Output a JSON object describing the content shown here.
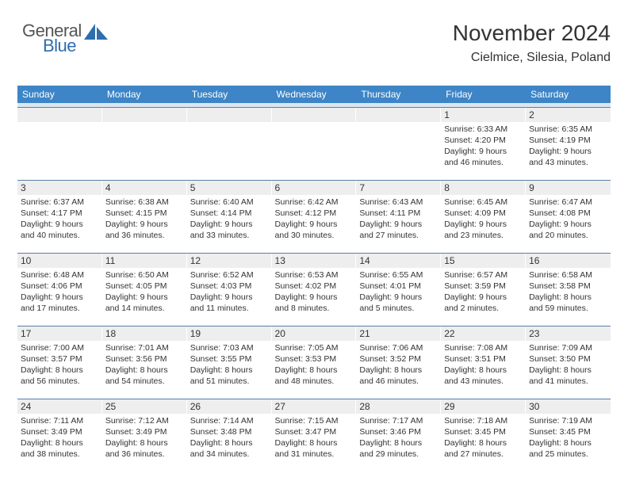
{
  "logo": {
    "general": "General",
    "blue": "Blue"
  },
  "header": {
    "month": "November 2024",
    "location": "Cielmice, Silesia, Poland"
  },
  "colors": {
    "header_bg": "#3d85c6",
    "header_text": "#ffffff",
    "daynum_bg": "#eeeeee",
    "row_sep": "#5a7fa8",
    "spacer_bg": "#dce6f0",
    "logo_blue": "#2f6ead",
    "logo_grey": "#555555"
  },
  "weekdays": [
    "Sunday",
    "Monday",
    "Tuesday",
    "Wednesday",
    "Thursday",
    "Friday",
    "Saturday"
  ],
  "weeks": [
    [
      {
        "n": "",
        "sr": "",
        "ss": "",
        "dl": ""
      },
      {
        "n": "",
        "sr": "",
        "ss": "",
        "dl": ""
      },
      {
        "n": "",
        "sr": "",
        "ss": "",
        "dl": ""
      },
      {
        "n": "",
        "sr": "",
        "ss": "",
        "dl": ""
      },
      {
        "n": "",
        "sr": "",
        "ss": "",
        "dl": ""
      },
      {
        "n": "1",
        "sr": "Sunrise: 6:33 AM",
        "ss": "Sunset: 4:20 PM",
        "dl": "Daylight: 9 hours and 46 minutes."
      },
      {
        "n": "2",
        "sr": "Sunrise: 6:35 AM",
        "ss": "Sunset: 4:19 PM",
        "dl": "Daylight: 9 hours and 43 minutes."
      }
    ],
    [
      {
        "n": "3",
        "sr": "Sunrise: 6:37 AM",
        "ss": "Sunset: 4:17 PM",
        "dl": "Daylight: 9 hours and 40 minutes."
      },
      {
        "n": "4",
        "sr": "Sunrise: 6:38 AM",
        "ss": "Sunset: 4:15 PM",
        "dl": "Daylight: 9 hours and 36 minutes."
      },
      {
        "n": "5",
        "sr": "Sunrise: 6:40 AM",
        "ss": "Sunset: 4:14 PM",
        "dl": "Daylight: 9 hours and 33 minutes."
      },
      {
        "n": "6",
        "sr": "Sunrise: 6:42 AM",
        "ss": "Sunset: 4:12 PM",
        "dl": "Daylight: 9 hours and 30 minutes."
      },
      {
        "n": "7",
        "sr": "Sunrise: 6:43 AM",
        "ss": "Sunset: 4:11 PM",
        "dl": "Daylight: 9 hours and 27 minutes."
      },
      {
        "n": "8",
        "sr": "Sunrise: 6:45 AM",
        "ss": "Sunset: 4:09 PM",
        "dl": "Daylight: 9 hours and 23 minutes."
      },
      {
        "n": "9",
        "sr": "Sunrise: 6:47 AM",
        "ss": "Sunset: 4:08 PM",
        "dl": "Daylight: 9 hours and 20 minutes."
      }
    ],
    [
      {
        "n": "10",
        "sr": "Sunrise: 6:48 AM",
        "ss": "Sunset: 4:06 PM",
        "dl": "Daylight: 9 hours and 17 minutes."
      },
      {
        "n": "11",
        "sr": "Sunrise: 6:50 AM",
        "ss": "Sunset: 4:05 PM",
        "dl": "Daylight: 9 hours and 14 minutes."
      },
      {
        "n": "12",
        "sr": "Sunrise: 6:52 AM",
        "ss": "Sunset: 4:03 PM",
        "dl": "Daylight: 9 hours and 11 minutes."
      },
      {
        "n": "13",
        "sr": "Sunrise: 6:53 AM",
        "ss": "Sunset: 4:02 PM",
        "dl": "Daylight: 9 hours and 8 minutes."
      },
      {
        "n": "14",
        "sr": "Sunrise: 6:55 AM",
        "ss": "Sunset: 4:01 PM",
        "dl": "Daylight: 9 hours and 5 minutes."
      },
      {
        "n": "15",
        "sr": "Sunrise: 6:57 AM",
        "ss": "Sunset: 3:59 PM",
        "dl": "Daylight: 9 hours and 2 minutes."
      },
      {
        "n": "16",
        "sr": "Sunrise: 6:58 AM",
        "ss": "Sunset: 3:58 PM",
        "dl": "Daylight: 8 hours and 59 minutes."
      }
    ],
    [
      {
        "n": "17",
        "sr": "Sunrise: 7:00 AM",
        "ss": "Sunset: 3:57 PM",
        "dl": "Daylight: 8 hours and 56 minutes."
      },
      {
        "n": "18",
        "sr": "Sunrise: 7:01 AM",
        "ss": "Sunset: 3:56 PM",
        "dl": "Daylight: 8 hours and 54 minutes."
      },
      {
        "n": "19",
        "sr": "Sunrise: 7:03 AM",
        "ss": "Sunset: 3:55 PM",
        "dl": "Daylight: 8 hours and 51 minutes."
      },
      {
        "n": "20",
        "sr": "Sunrise: 7:05 AM",
        "ss": "Sunset: 3:53 PM",
        "dl": "Daylight: 8 hours and 48 minutes."
      },
      {
        "n": "21",
        "sr": "Sunrise: 7:06 AM",
        "ss": "Sunset: 3:52 PM",
        "dl": "Daylight: 8 hours and 46 minutes."
      },
      {
        "n": "22",
        "sr": "Sunrise: 7:08 AM",
        "ss": "Sunset: 3:51 PM",
        "dl": "Daylight: 8 hours and 43 minutes."
      },
      {
        "n": "23",
        "sr": "Sunrise: 7:09 AM",
        "ss": "Sunset: 3:50 PM",
        "dl": "Daylight: 8 hours and 41 minutes."
      }
    ],
    [
      {
        "n": "24",
        "sr": "Sunrise: 7:11 AM",
        "ss": "Sunset: 3:49 PM",
        "dl": "Daylight: 8 hours and 38 minutes."
      },
      {
        "n": "25",
        "sr": "Sunrise: 7:12 AM",
        "ss": "Sunset: 3:49 PM",
        "dl": "Daylight: 8 hours and 36 minutes."
      },
      {
        "n": "26",
        "sr": "Sunrise: 7:14 AM",
        "ss": "Sunset: 3:48 PM",
        "dl": "Daylight: 8 hours and 34 minutes."
      },
      {
        "n": "27",
        "sr": "Sunrise: 7:15 AM",
        "ss": "Sunset: 3:47 PM",
        "dl": "Daylight: 8 hours and 31 minutes."
      },
      {
        "n": "28",
        "sr": "Sunrise: 7:17 AM",
        "ss": "Sunset: 3:46 PM",
        "dl": "Daylight: 8 hours and 29 minutes."
      },
      {
        "n": "29",
        "sr": "Sunrise: 7:18 AM",
        "ss": "Sunset: 3:45 PM",
        "dl": "Daylight: 8 hours and 27 minutes."
      },
      {
        "n": "30",
        "sr": "Sunrise: 7:19 AM",
        "ss": "Sunset: 3:45 PM",
        "dl": "Daylight: 8 hours and 25 minutes."
      }
    ]
  ]
}
